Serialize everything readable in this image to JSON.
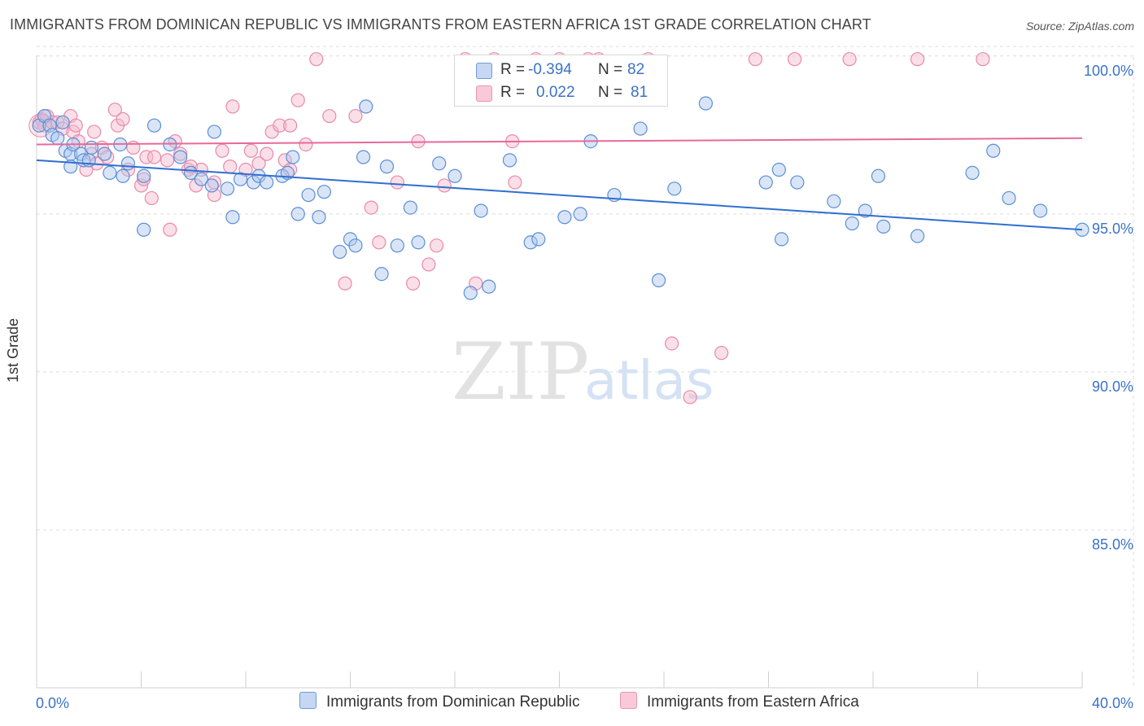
{
  "title": "IMMIGRANTS FROM DOMINICAN REPUBLIC VS IMMIGRANTS FROM EASTERN AFRICA 1ST GRADE CORRELATION CHART",
  "source": "Source: ZipAtlas.com",
  "legend": {
    "r_label": "R =",
    "n_label": "N =",
    "series1": {
      "r": "-0.394",
      "n": "82"
    },
    "series2": {
      "r": "0.022",
      "n": "81"
    }
  },
  "bottom_legend": {
    "series1": "Immigrants from Dominican Republic",
    "series2": "Immigrants from Eastern Africa"
  },
  "watermark": {
    "zip": "ZIP",
    "atlas": "atlas"
  },
  "colors": {
    "blue_fill": "#aac6ee",
    "blue_stroke": "#5b8fd6",
    "blue_line": "#2f6fd0",
    "pink_fill": "#f5b8cb",
    "pink_stroke": "#e98aa8",
    "pink_line": "#e8699a",
    "axis_text": "#3b72c8"
  },
  "chart_data": {
    "type": "scatter",
    "title": "IMMIGRANTS FROM DOMINICAN REPUBLIC VS IMMIGRANTS FROM EASTERN AFRICA 1ST GRADE CORRELATION CHART",
    "xlabel": "",
    "ylabel": "1st Grade",
    "xlim": [
      0,
      40
    ],
    "ylim": [
      80,
      101
    ],
    "x_tick_labels": [
      "0.0%",
      "40.0%"
    ],
    "y_ticks": [
      85,
      90,
      95,
      100
    ],
    "y_tick_labels": [
      "85.0%",
      "90.0%",
      "95.0%",
      "100.0%"
    ],
    "grid": true,
    "series": [
      {
        "name": "Immigrants from Dominican Republic",
        "color": "#5b8fd6",
        "trend": {
          "x": [
            0,
            40
          ],
          "y": [
            96.7,
            94.5
          ]
        },
        "points": [
          [
            0.1,
            97.8
          ],
          [
            0.3,
            98.1
          ],
          [
            0.5,
            97.8
          ],
          [
            0.6,
            97.5
          ],
          [
            0.8,
            97.4
          ],
          [
            1.0,
            97.9
          ],
          [
            1.1,
            97.0
          ],
          [
            1.3,
            96.9
          ],
          [
            1.3,
            96.5
          ],
          [
            1.4,
            97.2
          ],
          [
            1.7,
            96.9
          ],
          [
            1.8,
            96.7
          ],
          [
            2.0,
            96.7
          ],
          [
            2.1,
            97.1
          ],
          [
            2.6,
            96.9
          ],
          [
            2.8,
            96.3
          ],
          [
            3.2,
            97.2
          ],
          [
            3.3,
            96.2
          ],
          [
            3.5,
            96.6
          ],
          [
            4.1,
            94.5
          ],
          [
            4.1,
            96.2
          ],
          [
            4.5,
            97.8
          ],
          [
            5.1,
            97.2
          ],
          [
            5.5,
            96.8
          ],
          [
            5.9,
            96.3
          ],
          [
            6.3,
            96.1
          ],
          [
            6.7,
            95.9
          ],
          [
            6.8,
            97.6
          ],
          [
            7.3,
            95.8
          ],
          [
            7.5,
            94.9
          ],
          [
            7.8,
            96.1
          ],
          [
            8.3,
            96.0
          ],
          [
            8.5,
            96.2
          ],
          [
            8.8,
            96.0
          ],
          [
            9.4,
            96.2
          ],
          [
            9.6,
            96.3
          ],
          [
            9.8,
            96.8
          ],
          [
            10.0,
            95.0
          ],
          [
            10.4,
            95.6
          ],
          [
            10.8,
            94.9
          ],
          [
            11.0,
            95.7
          ],
          [
            11.6,
            93.8
          ],
          [
            12.0,
            94.2
          ],
          [
            12.2,
            94.0
          ],
          [
            12.5,
            96.8
          ],
          [
            12.6,
            98.4
          ],
          [
            13.2,
            93.1
          ],
          [
            13.4,
            96.5
          ],
          [
            13.8,
            94.0
          ],
          [
            14.3,
            95.2
          ],
          [
            14.6,
            94.1
          ],
          [
            15.4,
            96.6
          ],
          [
            16.0,
            96.2
          ],
          [
            16.6,
            92.5
          ],
          [
            17.0,
            95.1
          ],
          [
            17.3,
            92.7
          ],
          [
            18.1,
            96.7
          ],
          [
            18.9,
            94.1
          ],
          [
            19.2,
            94.2
          ],
          [
            20.2,
            94.9
          ],
          [
            20.8,
            95.0
          ],
          [
            21.2,
            97.3
          ],
          [
            22.1,
            95.6
          ],
          [
            23.1,
            97.7
          ],
          [
            23.8,
            92.9
          ],
          [
            24.4,
            95.8
          ],
          [
            25.6,
            98.5
          ],
          [
            27.9,
            96.0
          ],
          [
            28.4,
            96.4
          ],
          [
            28.5,
            94.2
          ],
          [
            29.1,
            96.0
          ],
          [
            30.5,
            95.4
          ],
          [
            31.2,
            94.7
          ],
          [
            31.7,
            95.1
          ],
          [
            32.2,
            96.2
          ],
          [
            32.4,
            94.6
          ],
          [
            33.7,
            94.3
          ],
          [
            35.8,
            96.3
          ],
          [
            36.6,
            97.0
          ],
          [
            37.2,
            95.5
          ],
          [
            38.4,
            95.1
          ],
          [
            40.0,
            94.5
          ]
        ]
      },
      {
        "name": "Immigrants from Eastern Africa",
        "color": "#e98aa8",
        "trend": {
          "x": [
            0,
            40
          ],
          "y": [
            97.2,
            97.4
          ]
        },
        "points": [
          [
            0.1,
            97.9
          ],
          [
            0.2,
            98.0
          ],
          [
            0.3,
            97.8
          ],
          [
            0.4,
            98.1
          ],
          [
            0.6,
            97.9
          ],
          [
            0.8,
            97.9
          ],
          [
            1.0,
            97.7
          ],
          [
            1.3,
            98.1
          ],
          [
            1.4,
            97.6
          ],
          [
            1.6,
            97.3
          ],
          [
            1.9,
            96.4
          ],
          [
            2.1,
            96.9
          ],
          [
            2.2,
            97.6
          ],
          [
            2.5,
            97.1
          ],
          [
            2.7,
            96.8
          ],
          [
            3.0,
            98.3
          ],
          [
            3.1,
            97.8
          ],
          [
            3.3,
            98.0
          ],
          [
            3.5,
            96.4
          ],
          [
            3.7,
            97.1
          ],
          [
            4.0,
            95.9
          ],
          [
            4.1,
            96.1
          ],
          [
            4.2,
            96.8
          ],
          [
            4.4,
            95.5
          ],
          [
            4.5,
            96.8
          ],
          [
            5.0,
            96.7
          ],
          [
            5.1,
            94.5
          ],
          [
            5.3,
            97.3
          ],
          [
            5.5,
            96.9
          ],
          [
            5.8,
            96.4
          ],
          [
            5.9,
            96.5
          ],
          [
            6.1,
            95.9
          ],
          [
            6.3,
            96.4
          ],
          [
            6.8,
            95.6
          ],
          [
            7.1,
            97.0
          ],
          [
            7.4,
            96.5
          ],
          [
            7.5,
            98.4
          ],
          [
            8.0,
            96.4
          ],
          [
            8.2,
            97.0
          ],
          [
            8.5,
            96.6
          ],
          [
            8.8,
            96.9
          ],
          [
            9.0,
            97.6
          ],
          [
            9.3,
            97.8
          ],
          [
            9.5,
            96.7
          ],
          [
            9.7,
            96.4
          ],
          [
            10.0,
            98.6
          ],
          [
            10.3,
            97.2
          ],
          [
            10.7,
            99.9
          ],
          [
            11.2,
            98.1
          ],
          [
            11.8,
            92.8
          ],
          [
            12.2,
            98.1
          ],
          [
            12.8,
            95.2
          ],
          [
            13.1,
            94.1
          ],
          [
            13.8,
            96.0
          ],
          [
            14.4,
            92.8
          ],
          [
            14.6,
            97.3
          ],
          [
            15.0,
            93.4
          ],
          [
            15.3,
            94.0
          ],
          [
            15.6,
            95.9
          ],
          [
            16.4,
            99.9
          ],
          [
            16.8,
            92.8
          ],
          [
            17.5,
            99.9
          ],
          [
            18.2,
            97.3
          ],
          [
            18.3,
            96.0
          ],
          [
            19.1,
            99.9
          ],
          [
            20.0,
            99.9
          ],
          [
            21.1,
            99.9
          ],
          [
            21.5,
            99.9
          ],
          [
            23.4,
            99.9
          ],
          [
            24.3,
            90.9
          ],
          [
            25.0,
            89.2
          ],
          [
            26.2,
            90.6
          ],
          [
            27.5,
            99.9
          ],
          [
            29.0,
            99.9
          ],
          [
            31.1,
            99.9
          ],
          [
            33.7,
            99.9
          ],
          [
            36.2,
            99.9
          ],
          [
            2.3,
            96.6
          ],
          [
            6.8,
            96.0
          ],
          [
            9.7,
            97.8
          ],
          [
            1.5,
            97.8
          ]
        ]
      }
    ]
  }
}
